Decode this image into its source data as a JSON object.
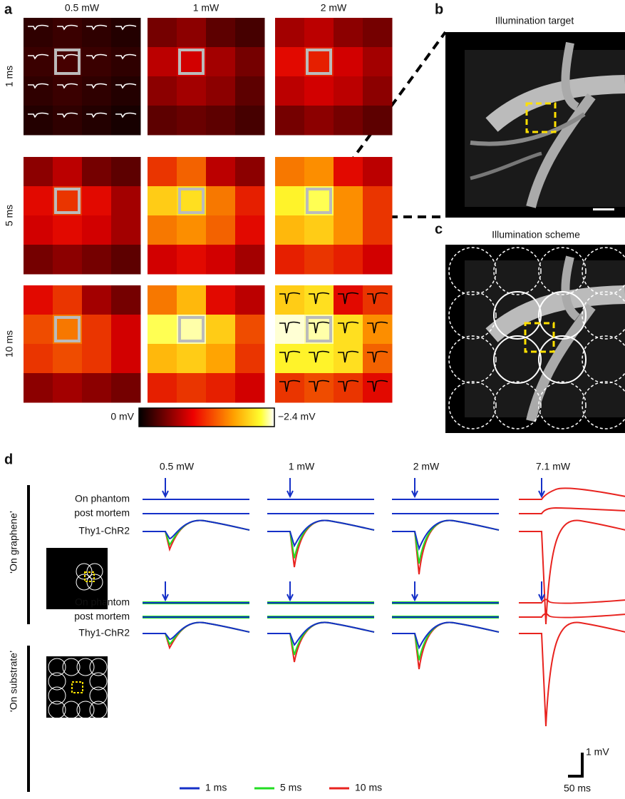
{
  "panel_labels": {
    "a": "a",
    "b": "b",
    "c": "c",
    "d": "d"
  },
  "panel_a": {
    "powers": [
      "0.5 mW",
      "1 mW",
      "2 mW"
    ],
    "durations": [
      "1 ms",
      "5 ms",
      "10 ms"
    ],
    "colorbar": {
      "min_label": "0 mV",
      "max_label": "−2.4 mV",
      "vmin": 0,
      "vmax": -2.4
    },
    "maps": [
      [
        [
          [
            -0.2,
            -0.25,
            -0.2,
            -0.15
          ],
          [
            -0.25,
            -0.3,
            -0.25,
            -0.2
          ],
          [
            -0.2,
            -0.25,
            -0.2,
            -0.15
          ],
          [
            -0.15,
            -0.2,
            -0.15,
            -0.1
          ]
        ],
        [
          [
            -0.5,
            -0.6,
            -0.4,
            -0.3
          ],
          [
            -0.8,
            -0.9,
            -0.7,
            -0.5
          ],
          [
            -0.6,
            -0.7,
            -0.6,
            -0.4
          ],
          [
            -0.4,
            -0.45,
            -0.4,
            -0.3
          ]
        ],
        [
          [
            -0.7,
            -0.8,
            -0.6,
            -0.5
          ],
          [
            -1.0,
            -1.1,
            -0.9,
            -0.7
          ],
          [
            -0.8,
            -0.9,
            -0.8,
            -0.6
          ],
          [
            -0.5,
            -0.6,
            -0.5,
            -0.4
          ]
        ]
      ],
      [
        [
          [
            -0.6,
            -0.8,
            -0.5,
            -0.4
          ],
          [
            -1.0,
            -1.2,
            -1.0,
            -0.7
          ],
          [
            -0.9,
            -1.0,
            -0.9,
            -0.7
          ],
          [
            -0.5,
            -0.6,
            -0.5,
            -0.4
          ]
        ],
        [
          [
            -1.2,
            -1.4,
            -0.8,
            -0.6
          ],
          [
            -1.9,
            -2.0,
            -1.5,
            -1.1
          ],
          [
            -1.5,
            -1.6,
            -1.4,
            -1.0
          ],
          [
            -0.9,
            -1.0,
            -0.9,
            -0.7
          ]
        ],
        [
          [
            -1.5,
            -1.6,
            -1.0,
            -0.8
          ],
          [
            -2.1,
            -2.2,
            -1.6,
            -1.2
          ],
          [
            -1.8,
            -1.9,
            -1.6,
            -1.2
          ],
          [
            -1.1,
            -1.2,
            -1.1,
            -0.9
          ]
        ]
      ],
      [
        [
          [
            -1.0,
            -1.2,
            -0.7,
            -0.5
          ],
          [
            -1.3,
            -1.5,
            -1.2,
            -0.9
          ],
          [
            -1.2,
            -1.3,
            -1.2,
            -0.9
          ],
          [
            -0.6,
            -0.7,
            -0.6,
            -0.5
          ]
        ],
        [
          [
            -1.5,
            -1.8,
            -1.0,
            -0.8
          ],
          [
            -2.2,
            -2.3,
            -1.9,
            -1.3
          ],
          [
            -1.8,
            -1.9,
            -1.7,
            -1.2
          ],
          [
            -1.1,
            -1.2,
            -1.1,
            -0.9
          ]
        ],
        [
          [
            -1.9,
            -2.0,
            -1.0,
            -1.2
          ],
          [
            -2.35,
            -2.3,
            -2.0,
            -1.6
          ],
          [
            -2.1,
            -2.1,
            -2.0,
            -1.4
          ],
          [
            -1.2,
            -1.3,
            -1.2,
            -1.0
          ]
        ]
      ]
    ]
  },
  "panel_b": {
    "title": "Illumination target"
  },
  "panel_c": {
    "title": "Illumination scheme"
  },
  "panel_d": {
    "powers": [
      "0.5 mW",
      "1 mW",
      "2 mW",
      "7.1 mW"
    ],
    "conditions": [
      "‘On graphene’",
      "‘On substrate’"
    ],
    "rows": [
      "On phantom",
      "post mortem",
      "Thy1-ChR2"
    ],
    "legend": [
      {
        "name": "1 ms",
        "color": "#1530c8"
      },
      {
        "name": "5 ms",
        "color": "#22dd22"
      },
      {
        "name": "10 ms",
        "color": "#e8231f"
      }
    ],
    "scale_y": "1 mV",
    "scale_x": "50 ms"
  }
}
